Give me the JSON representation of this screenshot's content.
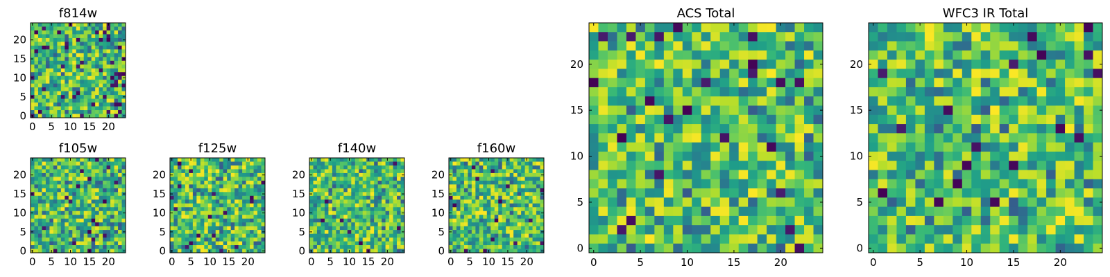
{
  "figure": {
    "colormap": "viridis"
  },
  "chart_data": [
    {
      "type": "heatmap",
      "title": "f814w",
      "grid": [
        25,
        25
      ],
      "xlim": [
        -0.5,
        24.5
      ],
      "ylim": [
        -0.5,
        24.5
      ],
      "xticks": [
        0,
        5,
        10,
        15,
        20
      ],
      "yticks": [
        0,
        5,
        10,
        15,
        20
      ],
      "noise_seed": 11,
      "dark_cell_rate": 0.06
    },
    {
      "type": "heatmap",
      "title": "f105w",
      "grid": [
        25,
        25
      ],
      "xlim": [
        -0.5,
        24.5
      ],
      "ylim": [
        -0.5,
        24.5
      ],
      "xticks": [
        0,
        5,
        10,
        15,
        20
      ],
      "yticks": [
        0,
        5,
        10,
        15,
        20
      ],
      "noise_seed": 23,
      "dark_cell_rate": 0.02
    },
    {
      "type": "heatmap",
      "title": "f125w",
      "grid": [
        25,
        25
      ],
      "xlim": [
        -0.5,
        24.5
      ],
      "ylim": [
        -0.5,
        24.5
      ],
      "xticks": [
        0,
        5,
        10,
        15,
        20
      ],
      "yticks": [
        0,
        5,
        10,
        15,
        20
      ],
      "noise_seed": 37,
      "dark_cell_rate": 0.02
    },
    {
      "type": "heatmap",
      "title": "f140w",
      "grid": [
        25,
        25
      ],
      "xlim": [
        -0.5,
        24.5
      ],
      "ylim": [
        -0.5,
        24.5
      ],
      "xticks": [
        0,
        5,
        10,
        15,
        20
      ],
      "yticks": [
        0,
        5,
        10,
        15,
        20
      ],
      "noise_seed": 41,
      "dark_cell_rate": 0.01
    },
    {
      "type": "heatmap",
      "title": "f160w",
      "grid": [
        25,
        25
      ],
      "xlim": [
        -0.5,
        24.5
      ],
      "ylim": [
        -0.5,
        24.5
      ],
      "xticks": [
        0,
        5,
        10,
        15,
        20
      ],
      "yticks": [
        0,
        5,
        10,
        15,
        20
      ],
      "noise_seed": 53,
      "dark_cell_rate": 0.02
    },
    {
      "type": "heatmap",
      "title": "ACS Total",
      "grid": [
        25,
        25
      ],
      "xlim": [
        -0.5,
        24.5
      ],
      "ylim": [
        -0.5,
        24.5
      ],
      "xticks": [
        0,
        5,
        10,
        15,
        20
      ],
      "yticks": [
        0,
        5,
        10,
        15,
        20
      ],
      "noise_seed": 67,
      "dark_cell_rate": 0.025
    },
    {
      "type": "heatmap",
      "title": "WFC3 IR Total",
      "grid": [
        25,
        25
      ],
      "xlim": [
        -0.5,
        24.5
      ],
      "ylim": [
        -0.5,
        24.5
      ],
      "xticks": [
        0,
        5,
        10,
        15,
        20
      ],
      "yticks": [
        0,
        5,
        10,
        15,
        20
      ],
      "noise_seed": 79,
      "dark_cell_rate": 0.02
    }
  ]
}
